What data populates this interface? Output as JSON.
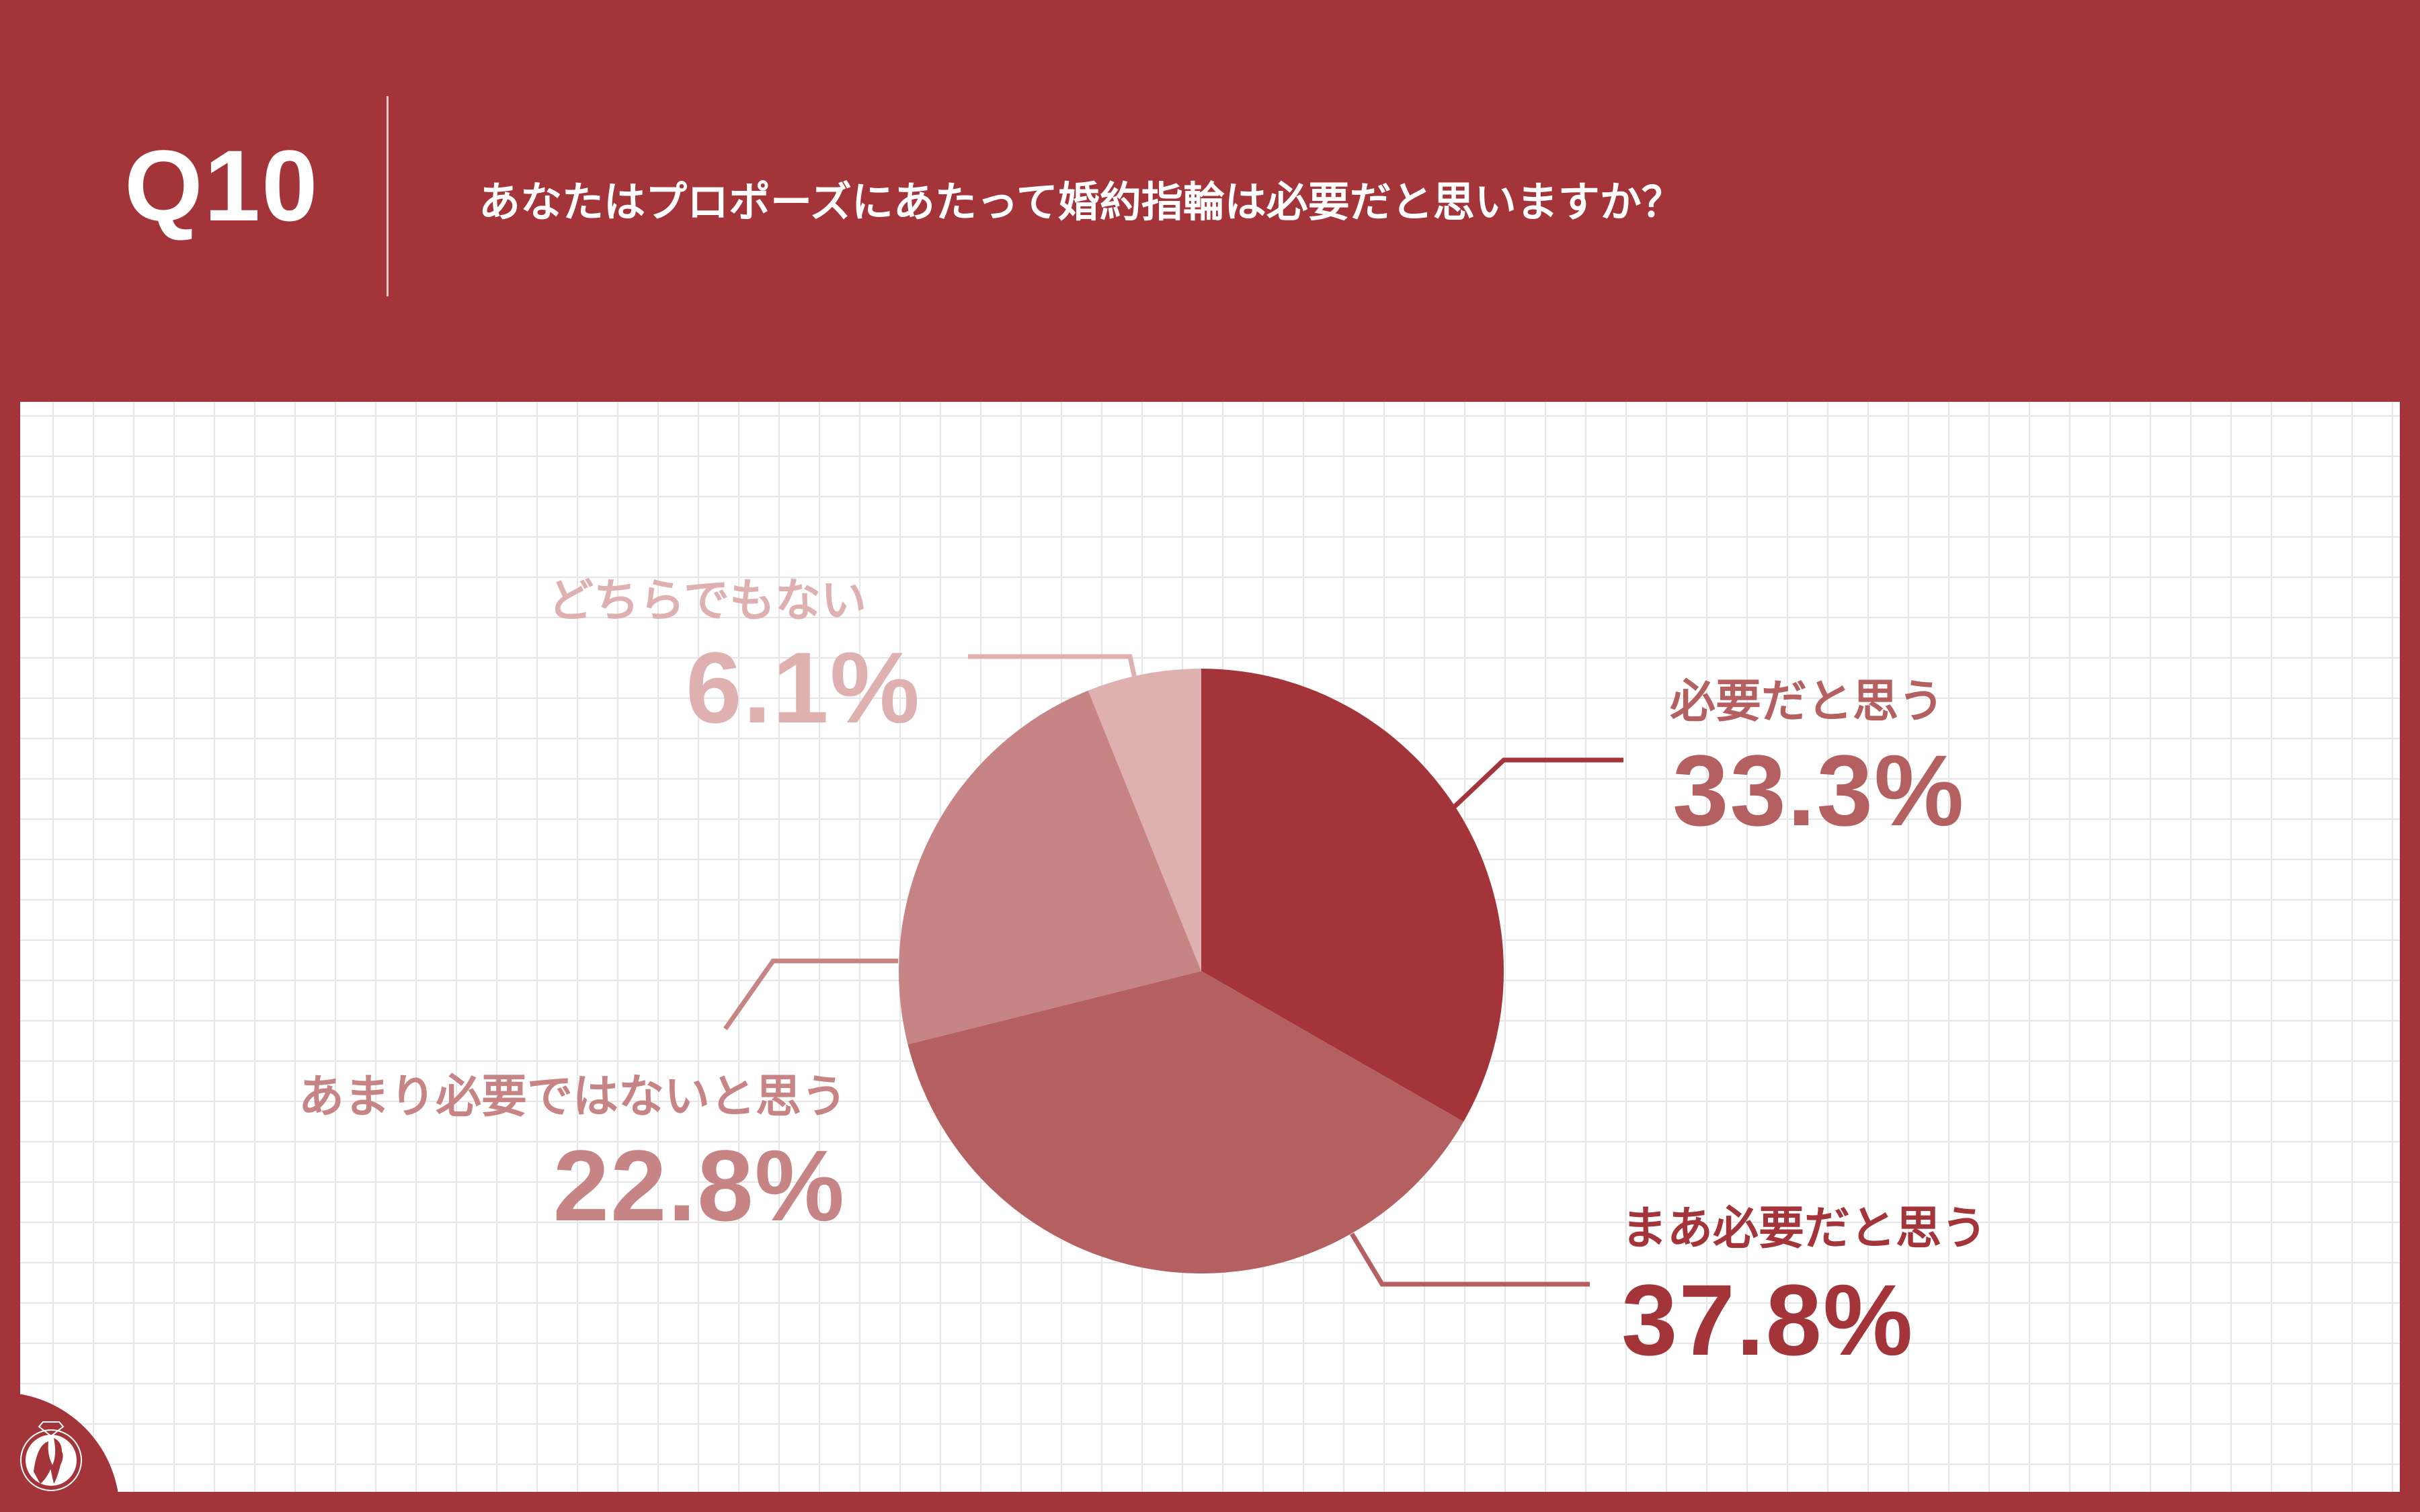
{
  "header": {
    "qnum": "Q10",
    "question": "あなたはプロポーズにあたって婚約指輪は必要だと思いますか？"
  },
  "colors": {
    "brand": "#a2343a",
    "grid": "#e6e6e6"
  },
  "chart_data": {
    "type": "pie",
    "title": "あなたはプロポーズにあたって婚約指輪は必要だと思いますか？",
    "start": "top",
    "direction": "clockwise",
    "slices": [
      {
        "label": "必要だと思う",
        "value": 33.3,
        "display": "33.3%",
        "color": "#a2343a"
      },
      {
        "label": "まあ必要だと思う",
        "value": 37.8,
        "display": "37.8%",
        "color": "#b46060"
      },
      {
        "label": "あまり必要ではないと思う",
        "value": 22.8,
        "display": "22.8%",
        "color": "#c68584"
      },
      {
        "label": "どちらでもない",
        "value": 6.1,
        "display": "6.1%",
        "color": "#deb0b0"
      }
    ]
  },
  "logo": {
    "icon": "ring-couple-logo"
  }
}
